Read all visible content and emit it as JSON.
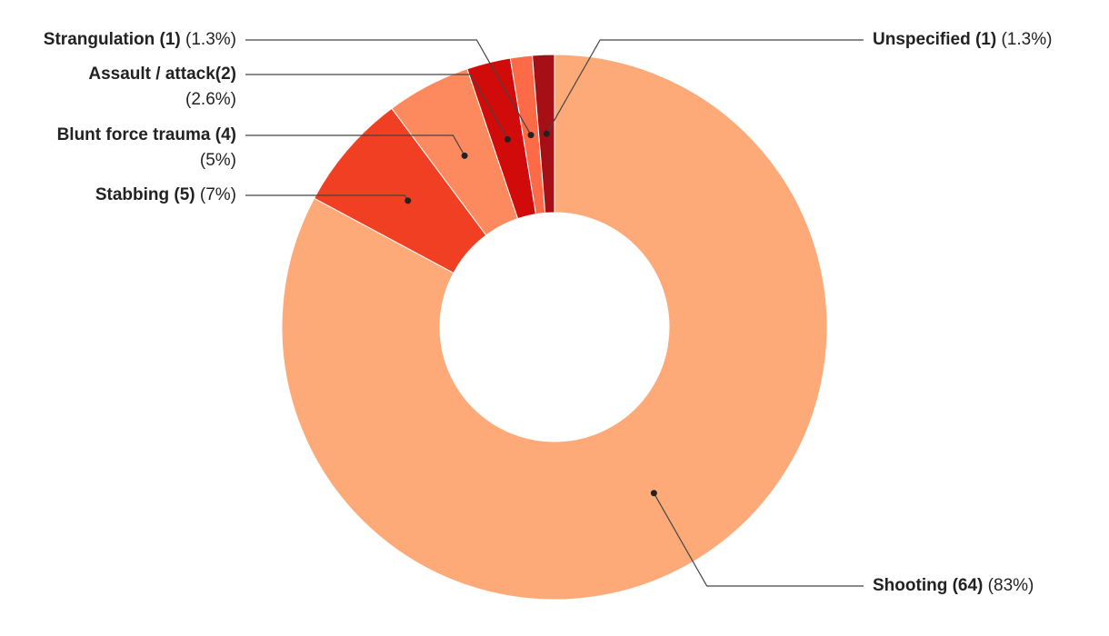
{
  "chart_data": {
    "type": "donut",
    "categories": [
      "Shooting (64)",
      "Stabbing (5)",
      "Blunt force trauma (4)",
      "Assault / attack(2)",
      "Strangulation (1)",
      "Unspecified (1)"
    ],
    "values": [
      83,
      7,
      5,
      2.6,
      1.3,
      1.3
    ],
    "value_labels": [
      "(83%)",
      "(7%)",
      "(5%)",
      "(2.6%)",
      "(1.3%)",
      "(1.3%)"
    ],
    "colors": [
      "#fdaa78",
      "#f03f22",
      "#fc8a5e",
      "#d10a0a",
      "#fc6a48",
      "#a50f15"
    ]
  }
}
